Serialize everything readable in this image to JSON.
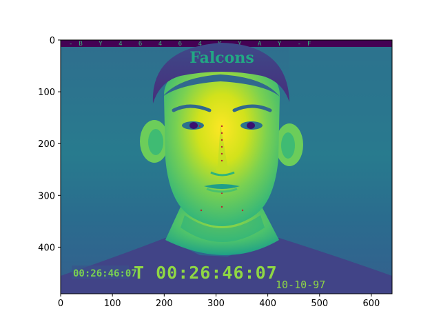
{
  "figure": {
    "x_ticks": [
      "0",
      "100",
      "200",
      "300",
      "400",
      "500",
      "600"
    ],
    "y_ticks": [
      "0",
      "100",
      "200",
      "300",
      "400"
    ],
    "x_range": [
      0,
      640
    ],
    "y_range": [
      0,
      490
    ],
    "colormap": "viridis",
    "colors": {
      "dark": "#440154",
      "deep": "#3b528b",
      "mid": "#21918c",
      "light": "#5ec962",
      "bright": "#fde725"
    }
  },
  "image": {
    "hat_text": "Falcons",
    "timecode_small": "00:26:46:07",
    "timecode_large": "T 00:26:46:07",
    "date_stamp": "10-10-97"
  }
}
